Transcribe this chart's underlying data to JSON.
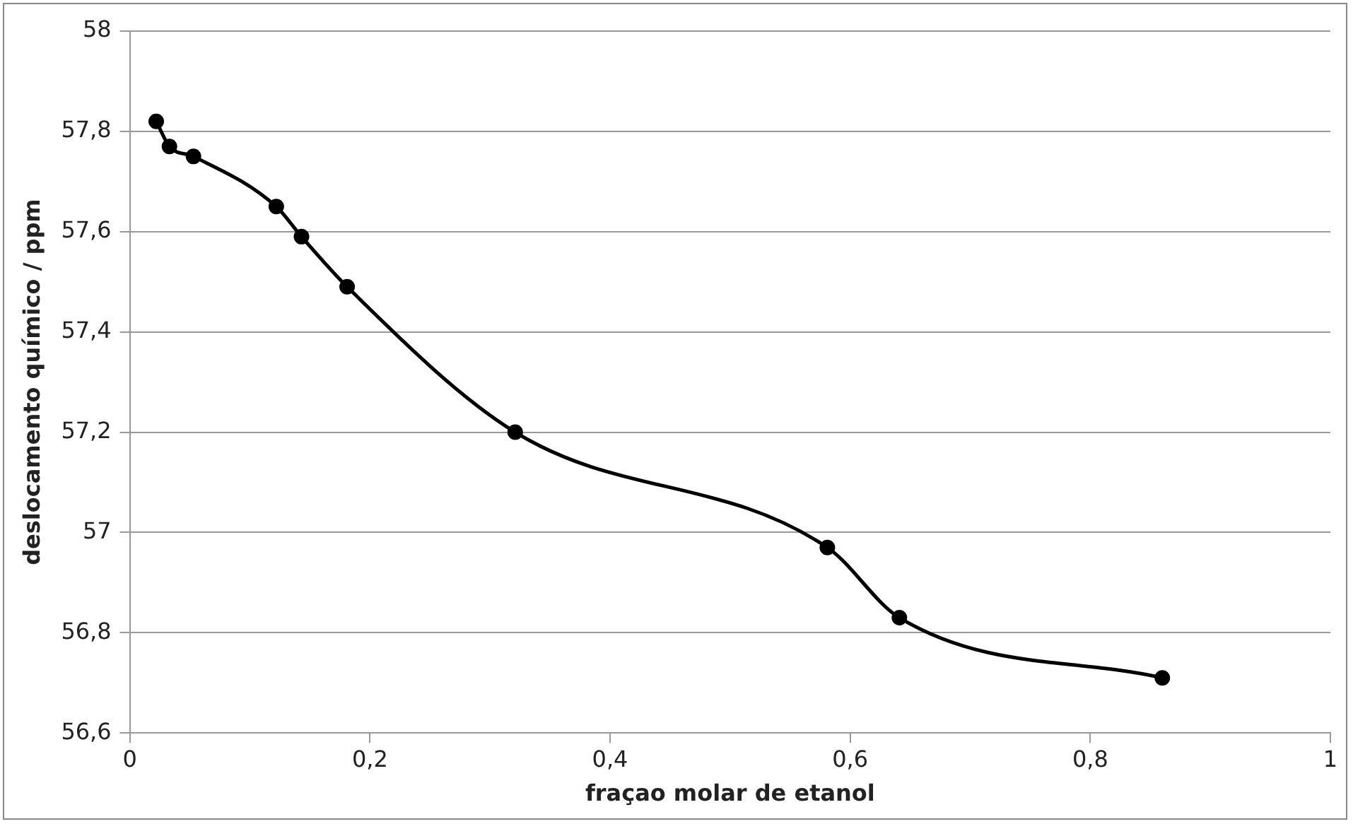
{
  "chart_data": {
    "type": "line",
    "xlabel": "fraçao molar de etanol",
    "ylabel": "deslocamento químico / ppm",
    "x": [
      0.022,
      0.033,
      0.053,
      0.122,
      0.143,
      0.181,
      0.321,
      0.581,
      0.641,
      0.86
    ],
    "series": [
      {
        "color": "#000000",
        "values": [
          57.82,
          57.77,
          57.75,
          57.65,
          57.59,
          57.49,
          57.2,
          56.97,
          56.83,
          56.71
        ]
      }
    ],
    "xlim": [
      0,
      1
    ],
    "xticks": [
      0,
      {
        "value": 0.2,
        "label": "0,2"
      },
      {
        "value": 0.4,
        "label": "0,4"
      },
      {
        "value": 0.6,
        "label": "0,6"
      },
      {
        "value": 0.8,
        "label": "0,8"
      },
      1
    ],
    "ylim": [
      56.6,
      58
    ],
    "yticks": [
      {
        "value": 56.6,
        "label": "56,6"
      },
      {
        "value": 56.8,
        "label": "56,8"
      },
      57,
      {
        "value": 57.2,
        "label": "57,2"
      },
      {
        "value": 57.4,
        "label": "57,4"
      },
      {
        "value": 57.6,
        "label": "57,6"
      },
      {
        "value": 57.8,
        "label": "57,8"
      },
      58
    ],
    "grid": "y",
    "legend": false,
    "marker": "circle",
    "line_style": "solid"
  }
}
